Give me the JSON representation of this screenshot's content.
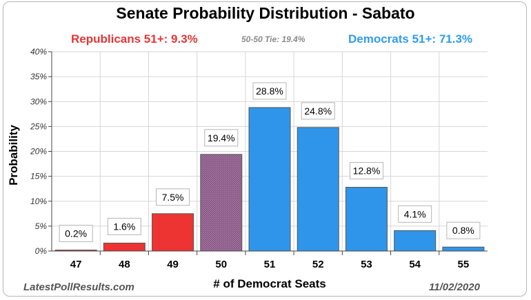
{
  "title": "Senate Probability Distribution - Sabato",
  "republicans_label": "Republicans 51+:  9.3%",
  "tie_label": "50-50 Tie: 19.4%",
  "democrats_label": "Democrats 51+:  71.3%",
  "footer_site": "LatestPollResults.com",
  "footer_date": "11/02/2020",
  "colors": {
    "republican": "#ee3333",
    "tie": "#8e5c8a",
    "democrat": "#2f95ea"
  },
  "chart_data": {
    "type": "bar",
    "title": "Senate Probability Distribution - Sabato",
    "xlabel": "# of Democrat Seats",
    "ylabel": "Probability",
    "ylim": [
      0,
      40
    ],
    "yticks": [
      "0%",
      "5%",
      "10%",
      "15%",
      "20%",
      "25%",
      "30%",
      "35%",
      "40%"
    ],
    "grid": true,
    "categories": [
      "47",
      "48",
      "49",
      "50",
      "51",
      "52",
      "53",
      "54",
      "55"
    ],
    "values": [
      0.2,
      1.6,
      7.5,
      19.4,
      28.8,
      24.8,
      12.8,
      4.1,
      0.8
    ],
    "labels": [
      "0.2%",
      "1.6%",
      "7.5%",
      "19.4%",
      "28.8%",
      "24.8%",
      "12.8%",
      "4.1%",
      "0.8%"
    ],
    "bar_groups": [
      "republican",
      "republican",
      "republican",
      "tie",
      "democrat",
      "democrat",
      "democrat",
      "democrat",
      "democrat"
    ]
  }
}
